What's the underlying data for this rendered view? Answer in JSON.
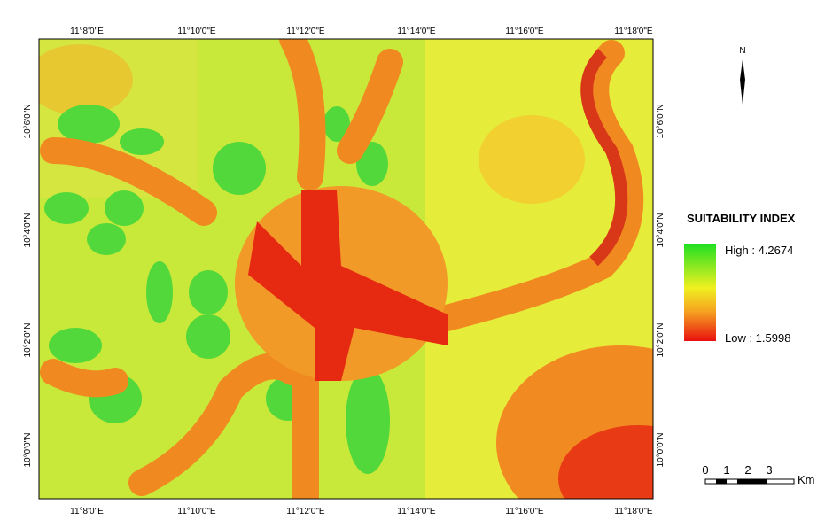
{
  "map": {
    "top_labels": [
      "11°8'0\"E",
      "11°10'0\"E",
      "11°12'0\"E",
      "11°14'0\"E",
      "11°16'0\"E",
      "11°18'0\"E"
    ],
    "bottom_labels": [
      "11°8'0\"E",
      "11°10'0\"E",
      "11°12'0\"E",
      "11°14'0\"E",
      "11°16'0\"E",
      "11°18'0\"E"
    ],
    "left_labels": [
      "10°6'0\"N",
      "10°4'0\"N",
      "10°2'0\"N",
      "10°0'0\"N"
    ],
    "right_labels": [
      "10°6'0\"N",
      "10°4'0\"N",
      "10°2'0\"N",
      "10°0'0\"N"
    ],
    "north": "N",
    "legend": {
      "title": "SUITABILITY INDEX",
      "high": "High : 4.2674",
      "low": "Low : 1.5998"
    },
    "scale": {
      "ticks": [
        "0",
        "1",
        "2",
        "3"
      ],
      "unit": "Km"
    }
  }
}
